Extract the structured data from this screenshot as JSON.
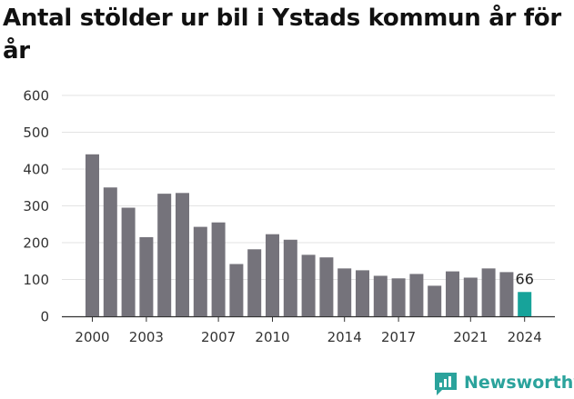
{
  "chart_data": {
    "type": "bar",
    "title": "Antal stölder ur bil i Ystads kommun år för år",
    "xlabel": "",
    "ylabel": "",
    "ylim": [
      0,
      600
    ],
    "yticks": [
      0,
      100,
      200,
      300,
      400,
      500,
      600
    ],
    "grid": true,
    "x": [
      2000,
      2001,
      2002,
      2003,
      2004,
      2005,
      2006,
      2007,
      2008,
      2009,
      2010,
      2011,
      2012,
      2013,
      2014,
      2015,
      2016,
      2017,
      2018,
      2019,
      2020,
      2021,
      2022,
      2023,
      2024
    ],
    "x_tick_labels": [
      2000,
      2003,
      2007,
      2010,
      2014,
      2017,
      2021,
      2024
    ],
    "values": [
      440,
      350,
      295,
      215,
      333,
      335,
      243,
      255,
      142,
      182,
      223,
      208,
      167,
      160,
      130,
      125,
      110,
      103,
      115,
      83,
      122,
      105,
      130,
      120,
      66
    ],
    "highlight": {
      "index": 24,
      "label": "66"
    },
    "colors": {
      "bar": "#75737b",
      "highlight": "#17a39a",
      "grid": "#e3e3e3",
      "axis": "#333333"
    }
  },
  "branding": {
    "name": "Newsworthy",
    "color": "#2ba39c"
  }
}
